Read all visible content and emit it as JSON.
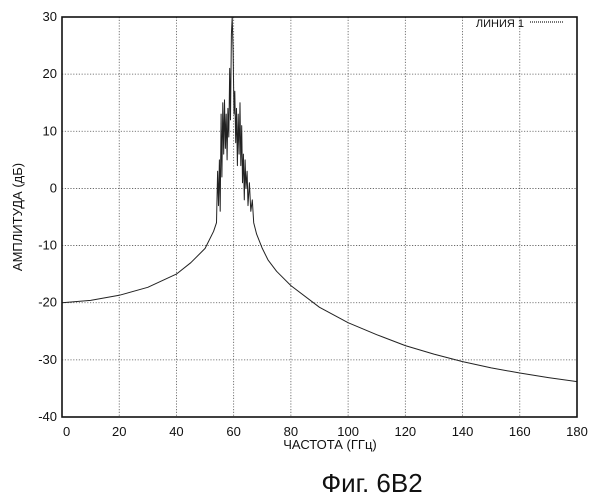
{
  "chart_data": {
    "type": "line",
    "xlabel": "ЧАСТОТА (ГГц)",
    "ylabel": "АМПЛИТУДА (дБ)",
    "xlim": [
      0,
      180
    ],
    "ylim": [
      -40,
      30
    ],
    "x_ticks": [
      "0",
      "20",
      "40",
      "60",
      "80",
      "100",
      "120",
      "140",
      "160",
      "180"
    ],
    "y_ticks": [
      "30",
      "20",
      "10",
      "0",
      "-10",
      "-20",
      "-30",
      "-40"
    ],
    "grid": true,
    "legend_position": "top-right",
    "series": [
      {
        "name": "ЛИНИЯ 1",
        "points": [
          [
            0,
            -20
          ],
          [
            10,
            -19.6
          ],
          [
            20,
            -18.7
          ],
          [
            30,
            -17.3
          ],
          [
            40,
            -15
          ],
          [
            45,
            -13
          ],
          [
            50,
            -10.5
          ],
          [
            53,
            -7.5
          ],
          [
            54,
            -6
          ],
          [
            54.4,
            3
          ],
          [
            54.7,
            -3
          ],
          [
            55,
            5
          ],
          [
            55.3,
            -4
          ],
          [
            55.6,
            13
          ],
          [
            55.9,
            2
          ],
          [
            56.2,
            15
          ],
          [
            56.5,
            6
          ],
          [
            56.8,
            15.5
          ],
          [
            57.1,
            7
          ],
          [
            57.4,
            13
          ],
          [
            57.7,
            5
          ],
          [
            58,
            14
          ],
          [
            58.3,
            9
          ],
          [
            58.6,
            21
          ],
          [
            58.9,
            12
          ],
          [
            59.2,
            27
          ],
          [
            59.5,
            30
          ],
          [
            59.8,
            24
          ],
          [
            60.1,
            13
          ],
          [
            60.4,
            17
          ],
          [
            60.7,
            8
          ],
          [
            61,
            14
          ],
          [
            61.3,
            4
          ],
          [
            61.6,
            13
          ],
          [
            61.9,
            6
          ],
          [
            62.2,
            15
          ],
          [
            62.5,
            4
          ],
          [
            62.8,
            11
          ],
          [
            63.1,
            1
          ],
          [
            63.4,
            6
          ],
          [
            63.7,
            -2
          ],
          [
            64,
            5
          ],
          [
            64.3,
            0
          ],
          [
            64.7,
            3
          ],
          [
            65,
            -3
          ],
          [
            65.5,
            1
          ],
          [
            66,
            -4
          ],
          [
            66.5,
            -2
          ],
          [
            67,
            -6
          ],
          [
            68,
            -8
          ],
          [
            70,
            -10.5
          ],
          [
            72,
            -12.5
          ],
          [
            75,
            -14.5
          ],
          [
            80,
            -17
          ],
          [
            90,
            -20.8
          ],
          [
            100,
            -23.5
          ],
          [
            110,
            -25.6
          ],
          [
            120,
            -27.5
          ],
          [
            130,
            -29
          ],
          [
            140,
            -30.3
          ],
          [
            150,
            -31.4
          ],
          [
            160,
            -32.3
          ],
          [
            170,
            -33.1
          ],
          [
            180,
            -33.8
          ]
        ]
      }
    ]
  },
  "figure_caption": "Фиг. 6В2"
}
